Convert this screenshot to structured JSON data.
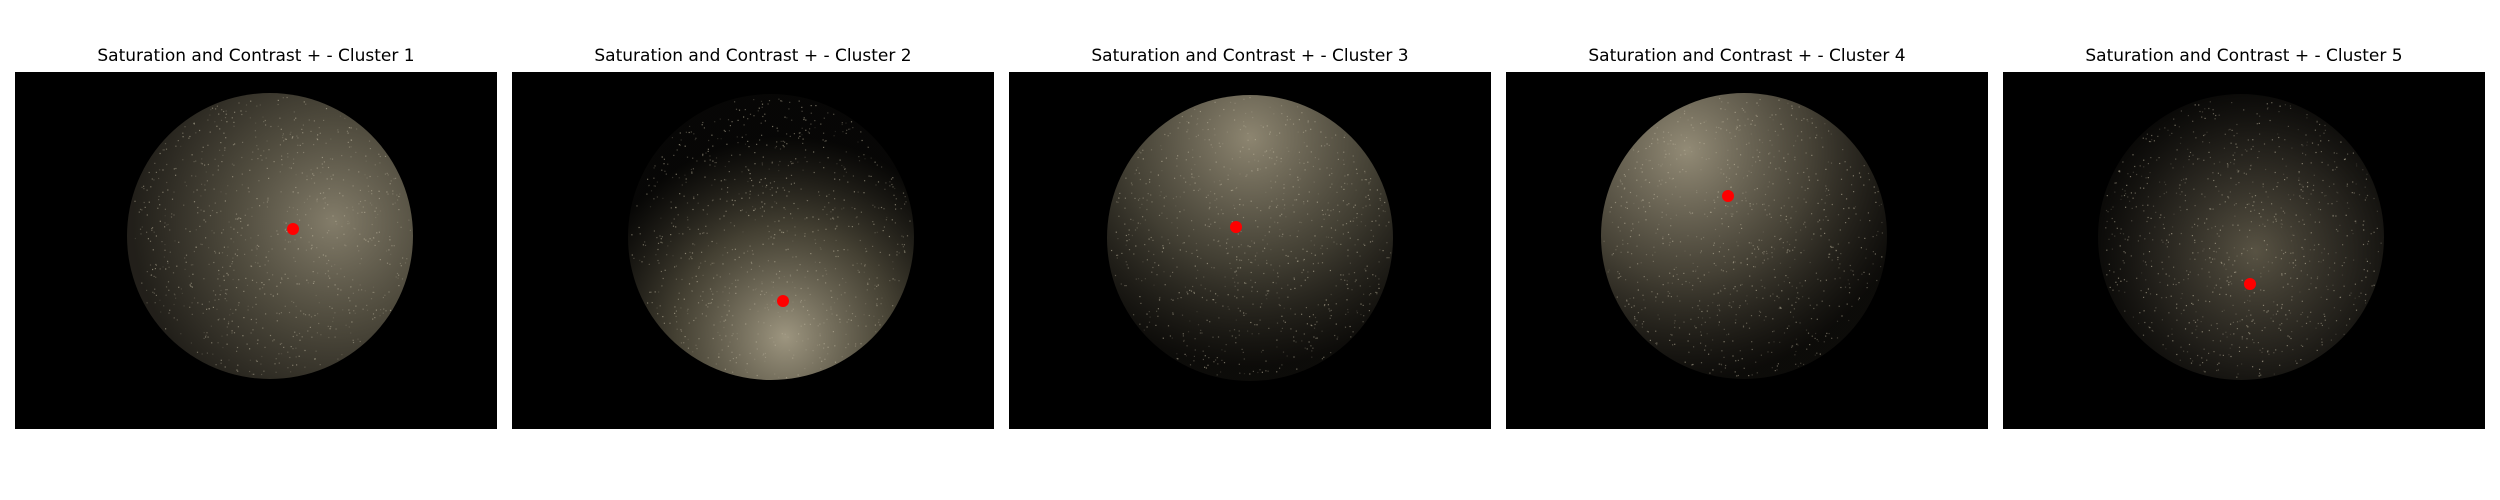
{
  "figure": {
    "panels": [
      {
        "title": "Saturation and Contrast + - Cluster 1",
        "centroid_color": "#ff0000",
        "speckle_tint": "#b8b09a",
        "brightness": "diffuse, brighter on right side"
      },
      {
        "title": "Saturation and Contrast + - Cluster 2",
        "centroid_color": "#ff0000",
        "speckle_tint": "#b8b09a",
        "brightness": "brighter toward bottom"
      },
      {
        "title": "Saturation and Contrast + - Cluster 3",
        "centroid_color": "#ff0000",
        "speckle_tint": "#b8b09a",
        "brightness": "brighter toward top"
      },
      {
        "title": "Saturation and Contrast + - Cluster 4",
        "centroid_color": "#ff0000",
        "speckle_tint": "#b8b09a",
        "brightness": "brighter toward upper-left"
      },
      {
        "title": "Saturation and Contrast + - Cluster 5",
        "centroid_color": "#ff0000",
        "speckle_tint": "#b8b09a",
        "brightness": "faint, center-lower"
      }
    ]
  }
}
